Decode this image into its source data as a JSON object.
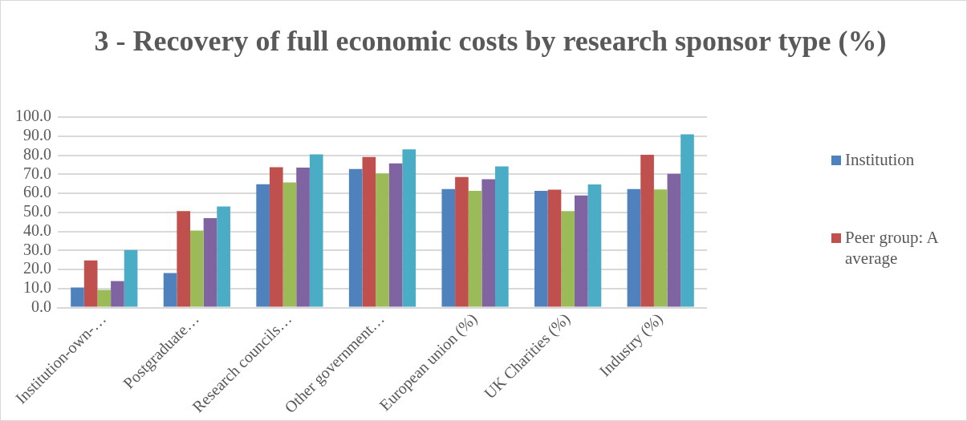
{
  "chart_data": {
    "type": "bar",
    "title": "3 - Recovery of full economic costs by research sponsor type (%)",
    "categories": [
      "Institution-own-…",
      "Postgraduate…",
      "Research councils…",
      "Other government…",
      "European union (%)",
      "UK Charities (%)",
      "Industry (%)"
    ],
    "series": [
      {
        "name": "Institution",
        "color": "#4f81bd",
        "values": [
          10.6,
          18.1,
          64.8,
          72.8,
          62.2,
          61.3,
          62.2
        ]
      },
      {
        "name": "Peer group: A average",
        "color": "#c0504d",
        "values": [
          24.8,
          50.7,
          73.7,
          79.1,
          68.5,
          61.9,
          80.2
        ]
      },
      {
        "color": "#9bbb59",
        "values": [
          9.3,
          40.4,
          65.7,
          70.4,
          61.3,
          50.7,
          62.0
        ]
      },
      {
        "color": "#8064a2",
        "values": [
          13.9,
          47.0,
          73.5,
          75.7,
          67.4,
          58.9,
          70.2
        ]
      },
      {
        "color": "#4bacc6",
        "values": [
          30.2,
          53.1,
          80.4,
          83.1,
          74.1,
          64.6,
          90.9
        ]
      }
    ],
    "ylim": [
      0,
      100
    ],
    "yticks": [
      {
        "value": 0,
        "label": "0.0"
      },
      {
        "value": 10,
        "label": "10.0"
      },
      {
        "value": 20,
        "label": "20.0"
      },
      {
        "value": 30,
        "label": "30.0"
      },
      {
        "value": 40,
        "label": "40.0"
      },
      {
        "value": 50,
        "label": "50.0"
      },
      {
        "value": 60,
        "label": "60.0"
      },
      {
        "value": 70,
        "label": "70.0"
      },
      {
        "value": 80,
        "label": "80.0"
      },
      {
        "value": 90,
        "label": "90.0"
      },
      {
        "value": 100,
        "label": "100.0"
      }
    ],
    "grid": "y",
    "legend": "right"
  }
}
